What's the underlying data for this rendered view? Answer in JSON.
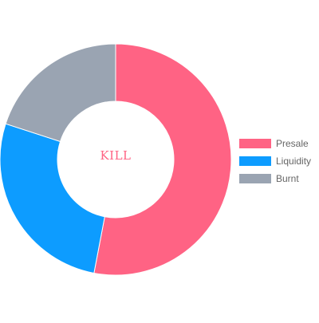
{
  "chart_data": {
    "type": "pie",
    "variant": "doughnut",
    "center_text": "KILL",
    "center_text_color": "#ff6384",
    "categories": [
      "Presale",
      "Liquidity",
      "Burnt"
    ],
    "values": [
      53,
      27,
      20
    ],
    "colors": [
      "#ff6384",
      "#0d9cff",
      "#9aa4b2"
    ],
    "legend_position": "right"
  }
}
